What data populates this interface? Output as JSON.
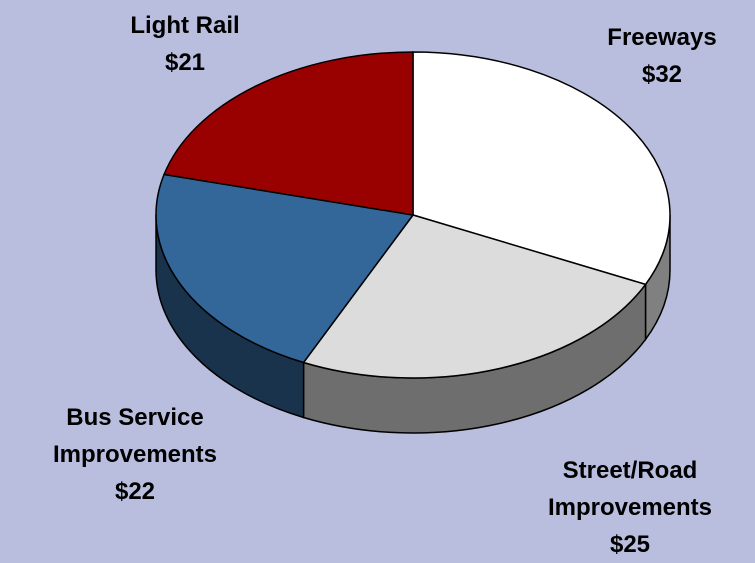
{
  "chart_data": {
    "type": "pie",
    "categories": [
      "Freeways",
      "Street/Road Improvements",
      "Bus Service Improvements",
      "Light Rail"
    ],
    "values": [
      32,
      25,
      22,
      21
    ],
    "value_labels": [
      "$32",
      "$25",
      "$22",
      "$21"
    ],
    "colors": [
      "#ffffff",
      "#dcdcdc",
      "#336699",
      "#990000"
    ]
  }
}
